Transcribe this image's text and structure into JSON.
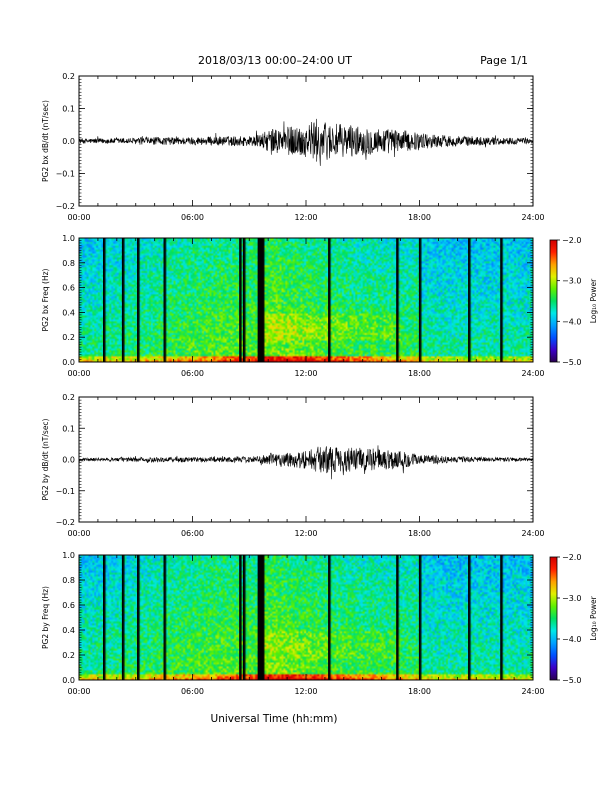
{
  "header": {
    "date_title": "2018/03/13  00:00–24:00 UT",
    "page_label": "Page 1/1"
  },
  "colors": {
    "trace": "#000000",
    "axis": "#000000",
    "colormap": [
      "#2a0050",
      "#3c00c8",
      "#0050ff",
      "#00a0ff",
      "#00e8e8",
      "#00e060",
      "#60f000",
      "#e0f000",
      "#ffa000",
      "#ff2000",
      "#d00000"
    ]
  },
  "chart_data": [
    {
      "type": "line",
      "ylabel": "PG2 bx dB/dt (nT/sec)",
      "x_range": [
        0,
        24
      ],
      "ylim": [
        -0.2,
        0.2
      ],
      "yticks": [
        "0.2",
        "0.1",
        "0.0",
        "−0.1",
        "−0.2"
      ],
      "ytick_values": [
        0.2,
        0.1,
        0.0,
        -0.1,
        -0.2
      ],
      "xticks": [
        "00:00",
        "06:00",
        "12:00",
        "18:00",
        "24:00"
      ],
      "xtick_values": [
        0,
        6,
        12,
        18,
        24
      ],
      "envelope": {
        "hours": [
          0,
          1,
          2,
          3,
          4,
          5,
          6,
          7,
          8,
          9,
          9.6,
          10,
          11,
          12,
          12.5,
          13,
          14,
          15,
          16,
          17,
          18,
          19,
          20,
          21,
          22,
          23,
          24
        ],
        "amplitude": [
          0.008,
          0.008,
          0.009,
          0.01,
          0.012,
          0.012,
          0.012,
          0.014,
          0.015,
          0.016,
          0.02,
          0.035,
          0.045,
          0.05,
          0.07,
          0.06,
          0.05,
          0.045,
          0.04,
          0.035,
          0.025,
          0.02,
          0.016,
          0.014,
          0.012,
          0.01,
          0.008
        ]
      }
    },
    {
      "type": "heatmap",
      "ylabel": "PG2 bx Freq (Hz)",
      "x_range": [
        0,
        24
      ],
      "ylim": [
        0,
        1.0
      ],
      "yticks": [
        "1.0",
        "0.8",
        "0.6",
        "0.4",
        "0.2",
        "0.0"
      ],
      "ytick_values": [
        1.0,
        0.8,
        0.6,
        0.4,
        0.2,
        0.0
      ],
      "xticks": [
        "00:00",
        "06:00",
        "12:00",
        "18:00",
        "24:00"
      ],
      "xtick_values": [
        0,
        6,
        12,
        18,
        24
      ],
      "colorbar": {
        "label": "Log₁₀ Power",
        "range": [
          -5.0,
          -2.0
        ],
        "ticks": [
          "−2.0",
          "−3.0",
          "−4.0",
          "−5.0"
        ],
        "tick_values": [
          -2.0,
          -3.0,
          -4.0,
          -5.0
        ]
      },
      "data_gaps_hours": [
        1.3,
        2.3,
        3.1,
        4.5,
        8.5,
        8.7,
        9.5,
        9.6,
        9.7,
        13.2,
        16.8,
        18.0,
        20.6,
        22.3
      ]
    },
    {
      "type": "line",
      "ylabel": "PG2 by dB/dt (nT/sec)",
      "x_range": [
        0,
        24
      ],
      "ylim": [
        -0.2,
        0.2
      ],
      "yticks": [
        "0.2",
        "0.1",
        "0.0",
        "−0.1",
        "−0.2"
      ],
      "ytick_values": [
        0.2,
        0.1,
        0.0,
        -0.1,
        -0.2
      ],
      "xticks": [
        "00:00",
        "06:00",
        "12:00",
        "18:00",
        "24:00"
      ],
      "xtick_values": [
        0,
        6,
        12,
        18,
        24
      ],
      "envelope": {
        "hours": [
          0,
          1,
          2,
          3,
          4,
          5,
          6,
          7,
          8,
          9,
          9.6,
          10,
          11,
          12,
          12.5,
          13,
          14,
          15,
          16,
          17,
          18,
          19,
          20,
          21,
          22,
          23,
          24
        ],
        "amplitude": [
          0.005,
          0.005,
          0.006,
          0.007,
          0.008,
          0.008,
          0.008,
          0.008,
          0.009,
          0.01,
          0.012,
          0.02,
          0.025,
          0.03,
          0.04,
          0.045,
          0.04,
          0.035,
          0.035,
          0.03,
          0.016,
          0.012,
          0.01,
          0.008,
          0.007,
          0.006,
          0.005
        ]
      }
    },
    {
      "type": "heatmap",
      "ylabel": "PG2 by Freq (Hz)",
      "x_range": [
        0,
        24
      ],
      "ylim": [
        0,
        1.0
      ],
      "yticks": [
        "1.0",
        "0.8",
        "0.6",
        "0.4",
        "0.2",
        "0.0"
      ],
      "ytick_values": [
        1.0,
        0.8,
        0.6,
        0.4,
        0.2,
        0.0
      ],
      "xticks": [
        "00:00",
        "06:00",
        "12:00",
        "18:00",
        "24:00"
      ],
      "xtick_values": [
        0,
        6,
        12,
        18,
        24
      ],
      "colorbar": {
        "label": "Log₁₀ Power",
        "range": [
          -5.0,
          -2.0
        ],
        "ticks": [
          "−2.0",
          "−3.0",
          "−4.0",
          "−5.0"
        ],
        "tick_values": [
          -2.0,
          -3.0,
          -4.0,
          -5.0
        ]
      },
      "data_gaps_hours": [
        1.3,
        2.3,
        3.1,
        4.5,
        8.5,
        8.7,
        9.5,
        9.6,
        9.7,
        13.2,
        16.8,
        18.0,
        20.6,
        22.3
      ]
    }
  ],
  "footer": {
    "xlabel": "Universal Time (hh:mm)"
  }
}
